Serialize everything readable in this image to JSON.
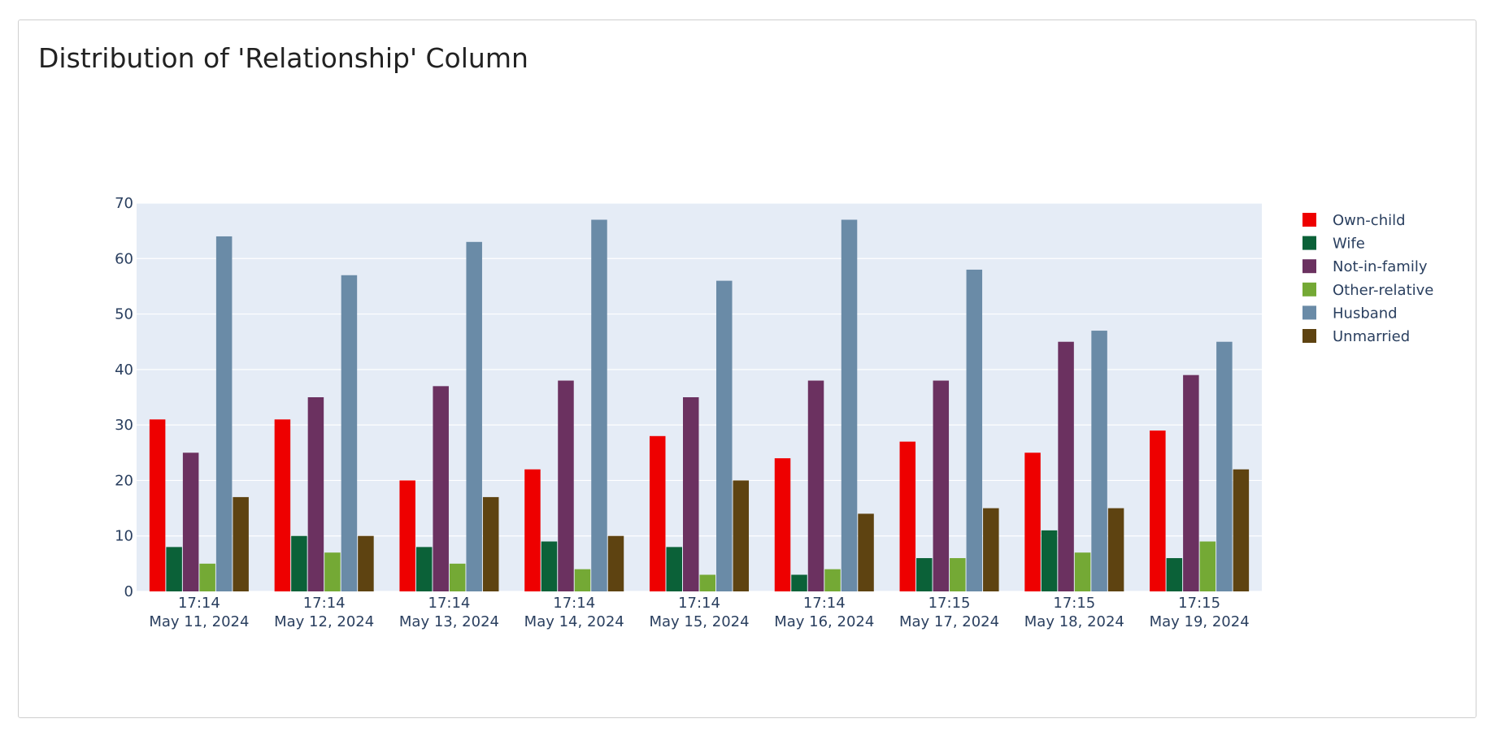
{
  "panel": {
    "title": "Distribution of 'Relationship' Column"
  },
  "chart_data": {
    "type": "bar",
    "title": "Distribution of 'Relationship' Column",
    "xlabel": "",
    "ylabel": "",
    "ylim": [
      0,
      70
    ],
    "yticks": [
      0,
      10,
      20,
      30,
      40,
      50,
      60,
      70
    ],
    "grid": true,
    "legend_position": "top-right",
    "plot_background": "#e5ecf6",
    "categories": [
      [
        "17:14",
        "May 11, 2024"
      ],
      [
        "17:14",
        "May 12, 2024"
      ],
      [
        "17:14",
        "May 13, 2024"
      ],
      [
        "17:14",
        "May 14, 2024"
      ],
      [
        "17:14",
        "May 15, 2024"
      ],
      [
        "17:14",
        "May 16, 2024"
      ],
      [
        "17:15",
        "May 17, 2024"
      ],
      [
        "17:15",
        "May 18, 2024"
      ],
      [
        "17:15",
        "May 19, 2024"
      ]
    ],
    "series": [
      {
        "name": "Own-child",
        "color": "#ee0000",
        "values": [
          31,
          31,
          20,
          22,
          28,
          24,
          27,
          25,
          29
        ]
      },
      {
        "name": "Wife",
        "color": "#0b6138",
        "values": [
          8,
          10,
          8,
          9,
          8,
          3,
          6,
          11,
          6
        ]
      },
      {
        "name": "Not-in-family",
        "color": "#6b3160",
        "values": [
          25,
          35,
          37,
          38,
          35,
          38,
          38,
          45,
          39
        ]
      },
      {
        "name": "Other-relative",
        "color": "#74a935",
        "values": [
          5,
          7,
          5,
          4,
          3,
          4,
          6,
          7,
          9
        ]
      },
      {
        "name": "Husband",
        "color": "#6a8ba7",
        "values": [
          64,
          57,
          63,
          67,
          56,
          67,
          58,
          47,
          45
        ]
      },
      {
        "name": "Unmarried",
        "color": "#5e4311",
        "values": [
          17,
          10,
          17,
          10,
          20,
          14,
          15,
          15,
          22
        ]
      }
    ]
  }
}
